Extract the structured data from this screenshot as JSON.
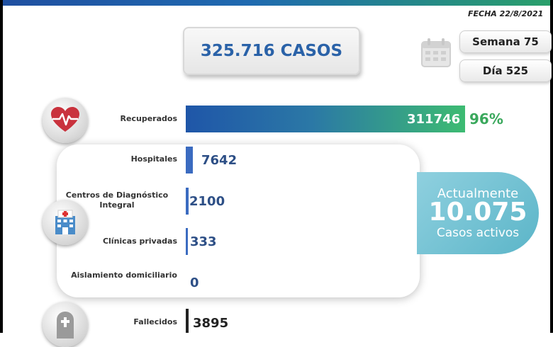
{
  "header": {
    "date": "FECHA 22/8/2021"
  },
  "summary": {
    "total_cases": "325.716 CASOS",
    "week": "Semana 75",
    "day": "Día 525"
  },
  "recovered": {
    "label": "Recuperados",
    "value": "311746",
    "percent": "96%"
  },
  "hospitalized": [
    {
      "label": "Hospitales",
      "value": "7642"
    },
    {
      "label": "Centros de Diagnóstico Integral",
      "value": "2100"
    },
    {
      "label": "Clínicas privadas",
      "value": "333"
    },
    {
      "label": "Aislamiento domiciliario",
      "value": "0"
    }
  ],
  "active": {
    "line1": "Actualmente",
    "number": "10.075",
    "line2": "Casos activos"
  },
  "deaths": {
    "label": "Fallecidos",
    "value": "3895"
  },
  "colors": {
    "primary_blue": "#2a62a8",
    "green": "#3aa85c",
    "teal": "#5bb5c8"
  },
  "icons": {
    "recovered": "heart-pulse-icon",
    "hospital": "hospital-building-icon",
    "deaths": "tombstone-icon",
    "calendar": "calendar-icon"
  }
}
